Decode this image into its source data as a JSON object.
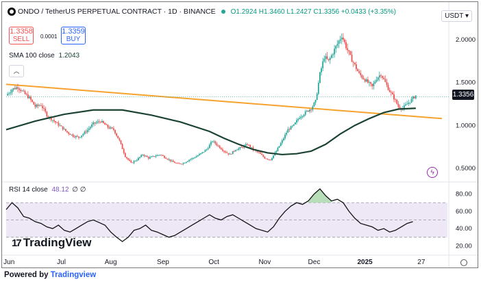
{
  "header": {
    "symbol": "ONDO / TetherUS PERPETUAL CONTRACT · 1D · BINANCE",
    "ohlc": {
      "o": "O1.2924",
      "h": "H1.3460",
      "l": "L1.2427",
      "c": "C1.3356",
      "chg": "+0.0433 (+3.35%)"
    }
  },
  "trade": {
    "sell_price": "1.3358",
    "sell_label": "SELL",
    "spread": "0.0001",
    "buy_price": "1.3359",
    "buy_label": "BUY"
  },
  "sma": {
    "label": "SMA 100 close",
    "value": "1.2043"
  },
  "rsi": {
    "label": "RSI 14 close",
    "value": "48.12",
    "extra": "∅ ∅"
  },
  "currency": "USDT ▾",
  "current_price": "1.3356",
  "brand": {
    "logo": "TradingView",
    "logo_mark": "17"
  },
  "footer": {
    "prefix": "Powered by ",
    "link": "Tradingview"
  },
  "colors": {
    "up": "#26a69a",
    "down": "#ef5350",
    "sma": "#1b4332",
    "trend": "#f7a22c",
    "rsi_band": "#ede7f6"
  },
  "chart_data": {
    "type": "candlestick",
    "price_axis_ticks": [
      "2.0000",
      "1.5000",
      "1.0000",
      "0.5000"
    ],
    "rsi_axis_ticks": [
      "80.00",
      "60.00",
      "40.00",
      "20.00"
    ],
    "time_axis_ticks": [
      "Jun",
      "Jul",
      "Aug",
      "Sep",
      "Oct",
      "Nov",
      "Dec",
      "2025",
      "27"
    ],
    "ylim": [
      0.38,
      2.2
    ],
    "rsi_ylim": [
      14,
      90
    ],
    "rsi_levels": [
      70,
      50,
      30
    ],
    "close_path": [
      [
        0,
        1.35
      ],
      [
        4,
        1.42
      ],
      [
        8,
        1.45
      ],
      [
        12,
        1.38
      ],
      [
        16,
        1.32
      ],
      [
        20,
        1.22
      ],
      [
        24,
        1.24
      ],
      [
        28,
        1.12
      ],
      [
        33,
        1.05
      ],
      [
        38,
        0.98
      ],
      [
        42,
        0.92
      ],
      [
        46,
        0.88
      ],
      [
        50,
        0.86
      ],
      [
        55,
        0.93
      ],
      [
        60,
        1.02
      ],
      [
        65,
        1.05
      ],
      [
        70,
        0.98
      ],
      [
        74,
        0.95
      ],
      [
        78,
        0.82
      ],
      [
        82,
        0.64
      ],
      [
        86,
        0.56
      ],
      [
        90,
        0.6
      ],
      [
        94,
        0.66
      ],
      [
        98,
        0.62
      ],
      [
        102,
        0.64
      ],
      [
        106,
        0.66
      ],
      [
        110,
        0.62
      ],
      [
        114,
        0.58
      ],
      [
        118,
        0.55
      ],
      [
        122,
        0.56
      ],
      [
        126,
        0.6
      ],
      [
        130,
        0.63
      ],
      [
        134,
        0.67
      ],
      [
        138,
        0.72
      ],
      [
        142,
        0.82
      ],
      [
        146,
        0.76
      ],
      [
        150,
        0.7
      ],
      [
        154,
        0.66
      ],
      [
        158,
        0.72
      ],
      [
        162,
        0.74
      ],
      [
        166,
        0.78
      ],
      [
        170,
        0.72
      ],
      [
        174,
        0.68
      ],
      [
        178,
        0.62
      ],
      [
        182,
        0.6
      ],
      [
        186,
        0.7
      ],
      [
        190,
        0.82
      ],
      [
        194,
        0.95
      ],
      [
        198,
        1.0
      ],
      [
        202,
        1.1
      ],
      [
        206,
        1.15
      ],
      [
        210,
        1.2
      ],
      [
        213,
        1.28
      ],
      [
        216,
        1.6
      ],
      [
        219,
        1.8
      ],
      [
        222,
        1.75
      ],
      [
        225,
        1.85
      ],
      [
        228,
        1.95
      ],
      [
        231,
        2.05
      ],
      [
        234,
        1.92
      ],
      [
        237,
        1.8
      ],
      [
        240,
        1.7
      ],
      [
        243,
        1.6
      ],
      [
        246,
        1.55
      ],
      [
        249,
        1.5
      ],
      [
        252,
        1.45
      ],
      [
        255,
        1.55
      ],
      [
        258,
        1.6
      ],
      [
        261,
        1.5
      ],
      [
        264,
        1.4
      ],
      [
        267,
        1.32
      ],
      [
        270,
        1.22
      ],
      [
        273,
        1.2
      ],
      [
        276,
        1.25
      ],
      [
        279,
        1.3
      ],
      [
        282,
        1.35
      ]
    ],
    "sma_path": [
      [
        0,
        0.95
      ],
      [
        20,
        1.05
      ],
      [
        40,
        1.13
      ],
      [
        60,
        1.18
      ],
      [
        80,
        1.18
      ],
      [
        100,
        1.12
      ],
      [
        120,
        1.04
      ],
      [
        140,
        0.93
      ],
      [
        150,
        0.85
      ],
      [
        160,
        0.78
      ],
      [
        170,
        0.72
      ],
      [
        180,
        0.68
      ],
      [
        190,
        0.66
      ],
      [
        200,
        0.67
      ],
      [
        210,
        0.7
      ],
      [
        220,
        0.78
      ],
      [
        230,
        0.9
      ],
      [
        240,
        1.0
      ],
      [
        250,
        1.08
      ],
      [
        260,
        1.15
      ],
      [
        270,
        1.19
      ],
      [
        282,
        1.2
      ]
    ],
    "trendline": [
      [
        0,
        1.48
      ],
      [
        300,
        1.08
      ]
    ],
    "rsi_path": [
      [
        0,
        62
      ],
      [
        4,
        70
      ],
      [
        8,
        64
      ],
      [
        12,
        54
      ],
      [
        16,
        52
      ],
      [
        20,
        48
      ],
      [
        24,
        46
      ],
      [
        28,
        42
      ],
      [
        32,
        40
      ],
      [
        36,
        44
      ],
      [
        40,
        38
      ],
      [
        44,
        36
      ],
      [
        48,
        40
      ],
      [
        52,
        44
      ],
      [
        56,
        48
      ],
      [
        60,
        50
      ],
      [
        64,
        47
      ],
      [
        68,
        44
      ],
      [
        72,
        36
      ],
      [
        76,
        30
      ],
      [
        80,
        25
      ],
      [
        84,
        30
      ],
      [
        88,
        38
      ],
      [
        92,
        40
      ],
      [
        96,
        44
      ],
      [
        100,
        38
      ],
      [
        104,
        36
      ],
      [
        108,
        33
      ],
      [
        112,
        30
      ],
      [
        116,
        32
      ],
      [
        120,
        36
      ],
      [
        124,
        40
      ],
      [
        128,
        44
      ],
      [
        132,
        48
      ],
      [
        136,
        52
      ],
      [
        140,
        56
      ],
      [
        144,
        52
      ],
      [
        148,
        50
      ],
      [
        152,
        54
      ],
      [
        156,
        56
      ],
      [
        160,
        52
      ],
      [
        164,
        48
      ],
      [
        168,
        44
      ],
      [
        172,
        40
      ],
      [
        176,
        38
      ],
      [
        180,
        36
      ],
      [
        184,
        42
      ],
      [
        188,
        52
      ],
      [
        192,
        60
      ],
      [
        196,
        66
      ],
      [
        200,
        70
      ],
      [
        204,
        68
      ],
      [
        208,
        72
      ],
      [
        212,
        80
      ],
      [
        216,
        86
      ],
      [
        220,
        78
      ],
      [
        224,
        72
      ],
      [
        228,
        74
      ],
      [
        232,
        70
      ],
      [
        236,
        60
      ],
      [
        240,
        52
      ],
      [
        244,
        46
      ],
      [
        248,
        44
      ],
      [
        252,
        42
      ],
      [
        256,
        38
      ],
      [
        260,
        40
      ],
      [
        264,
        36
      ],
      [
        268,
        38
      ],
      [
        272,
        42
      ],
      [
        276,
        46
      ],
      [
        280,
        48
      ]
    ]
  }
}
